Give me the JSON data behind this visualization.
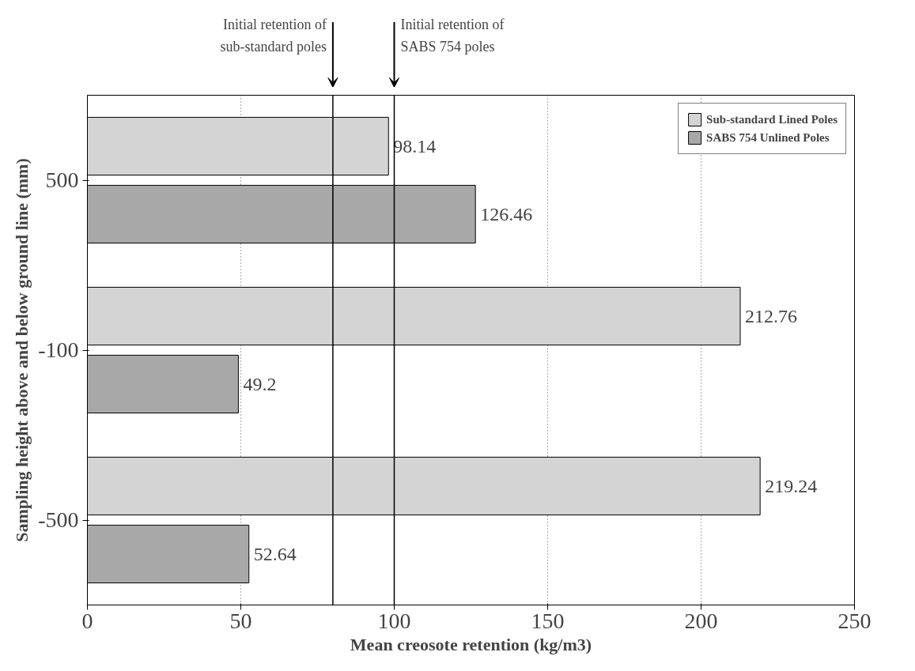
{
  "chart_data": {
    "type": "bar",
    "orientation": "horizontal",
    "xlabel": "Mean creosote retention (kg/m3)",
    "ylabel": "Sampling height above and below ground line (mm)",
    "categories": [
      "500",
      "-100",
      "-500"
    ],
    "series": [
      {
        "name": "Sub-standard Lined Poles",
        "color": "#d4d4d4",
        "values": [
          98.14,
          212.76,
          219.24
        ]
      },
      {
        "name": "SABS 754 Unlined Poles",
        "color": "#a8a8a8",
        "values": [
          126.46,
          49.2,
          52.64
        ]
      }
    ],
    "data_labels": true,
    "xlim": [
      0,
      250
    ],
    "xticks": [
      0,
      50,
      100,
      150,
      200,
      250
    ],
    "grid": "x",
    "legend": "top right",
    "ref_lines": [
      {
        "axis": "x",
        "value": 80,
        "label": "Initial retention of sub-standard poles",
        "color": "#000000"
      },
      {
        "axis": "x",
        "value": 100,
        "label": "Initial retention of SABS 754 poles",
        "color": "#000000"
      }
    ]
  }
}
